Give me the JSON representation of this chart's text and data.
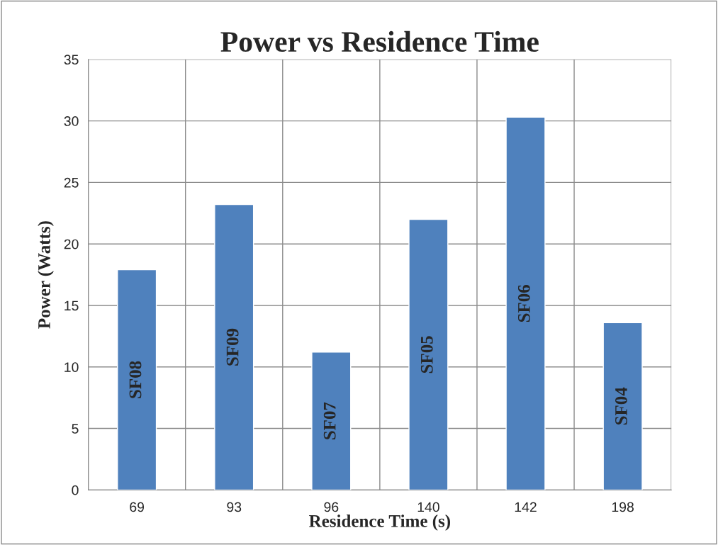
{
  "chart_data": {
    "type": "bar",
    "title": "Power vs Residence Time",
    "xlabel": "Residence Time (s)",
    "ylabel": "Power (Watts)",
    "categories": [
      "69",
      "93",
      "96",
      "140",
      "142",
      "198"
    ],
    "values": [
      17.9,
      23.2,
      11.2,
      22.0,
      30.3,
      13.6
    ],
    "color": "#4f81bd",
    "ylim": [
      0,
      35
    ],
    "yticks": [
      0,
      5,
      10,
      15,
      20,
      25,
      30,
      35
    ],
    "grid": true,
    "annotations": [
      "SF08",
      "SF09",
      "SF07",
      "SF05",
      "SF06",
      "SF04"
    ]
  }
}
